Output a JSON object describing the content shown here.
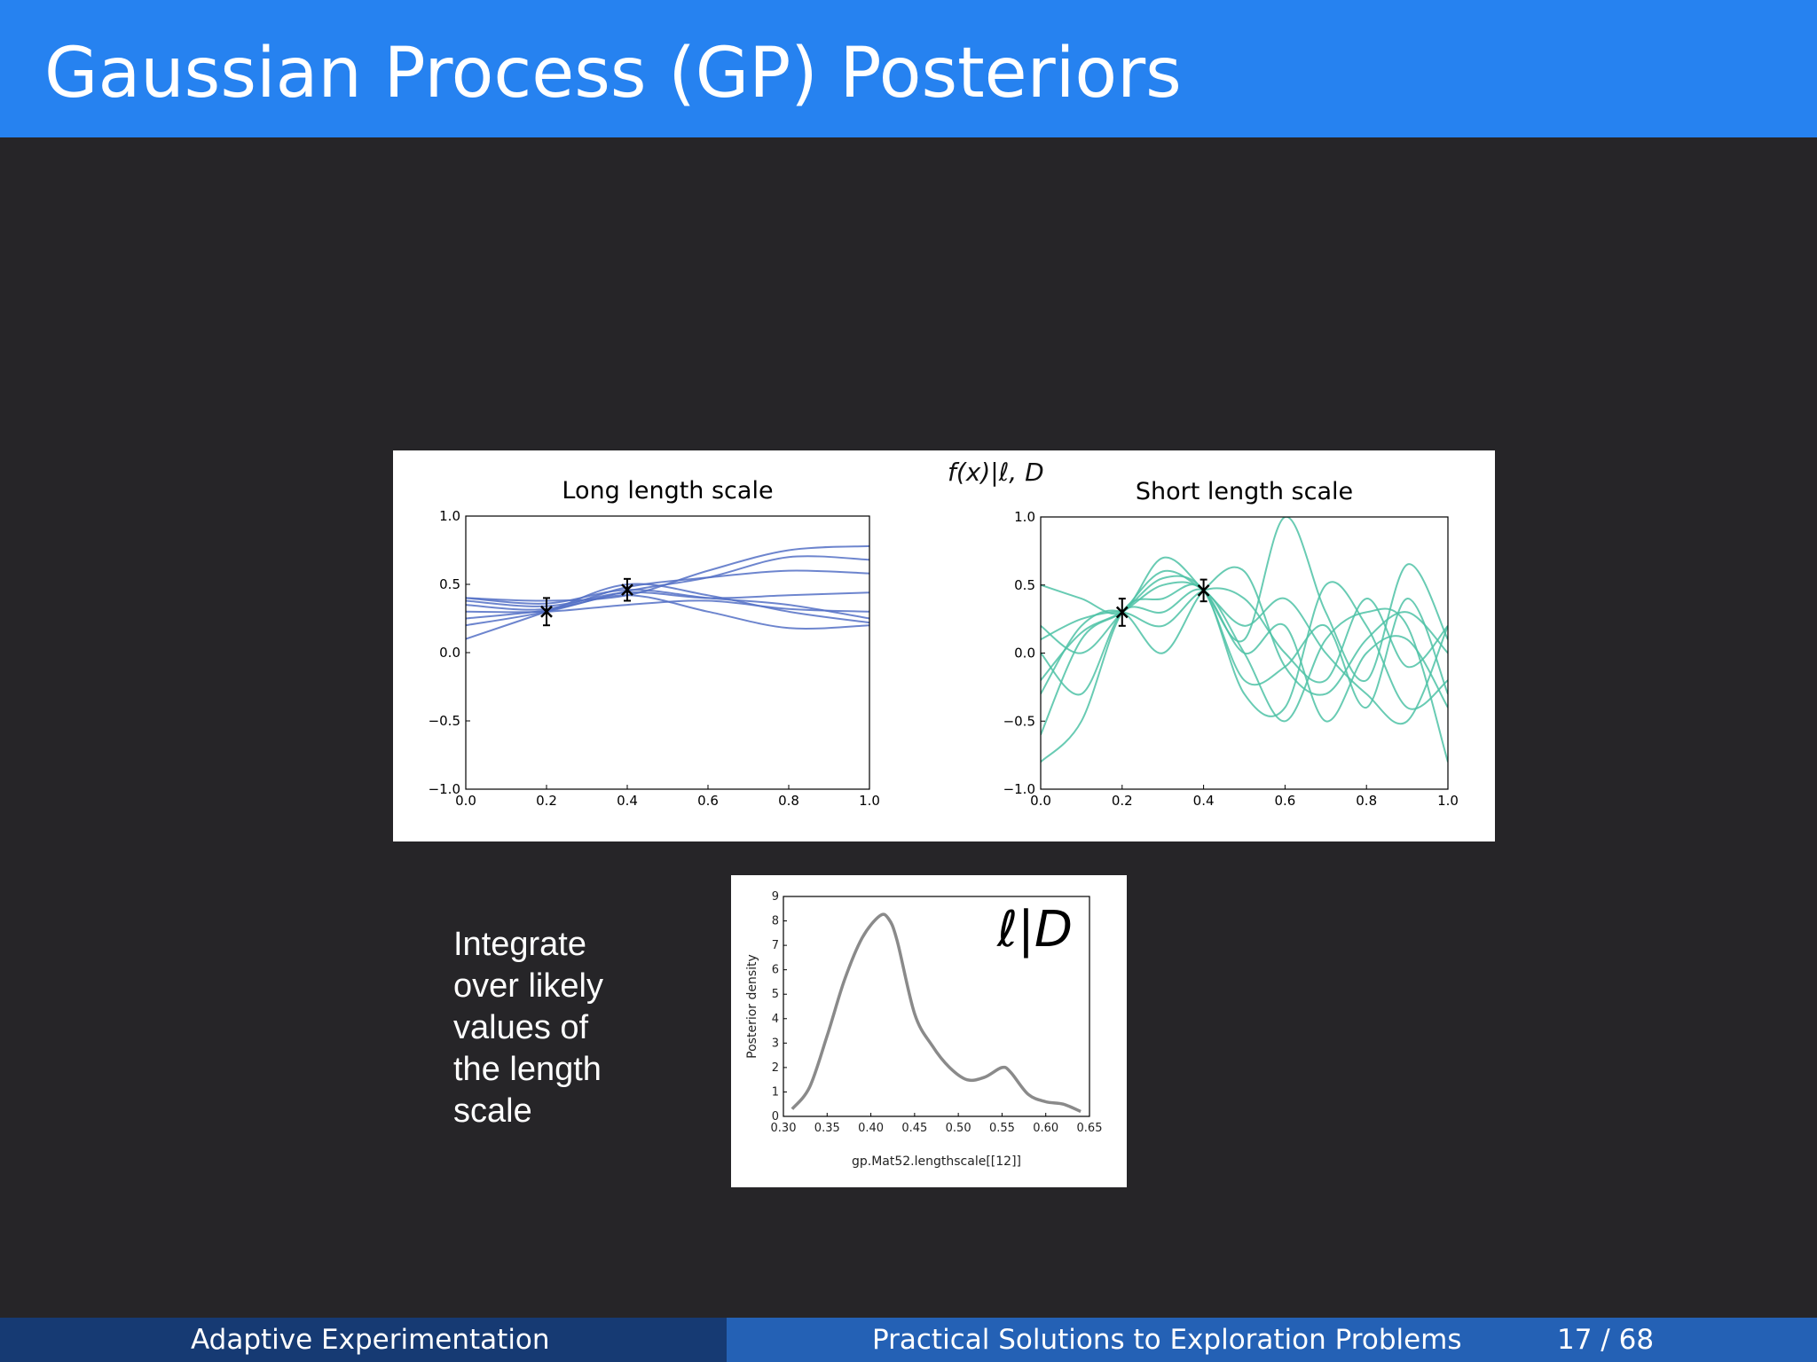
{
  "slide": {
    "title": "Gaussian Process (GP) Posteriors",
    "side_text": [
      "Integrate",
      "over likely",
      "values of",
      "the length",
      "scale"
    ],
    "formula_top": "f(x)|ℓ, D",
    "formula_bottom": "ℓ|D"
  },
  "footer": {
    "left": "Adaptive Experimentation",
    "subtitle": "Practical Solutions to Exploration Problems",
    "page": "17 / 68"
  },
  "colors": {
    "header": "#2682f0",
    "background": "#262528",
    "long": "#5470c6",
    "short": "#4ec2a6",
    "density": "#8a8a8a"
  },
  "chart_data": [
    {
      "type": "line",
      "title": "Long length scale",
      "xlabel": "",
      "ylabel": "",
      "xlim": [
        0.0,
        1.0
      ],
      "ylim": [
        -1.0,
        1.0
      ],
      "xticks": [
        "0.0",
        "0.2",
        "0.4",
        "0.6",
        "0.8",
        "1.0"
      ],
      "yticks": [
        "1.0",
        "0.5",
        "0.0",
        "−0.5",
        "−1.0"
      ],
      "observations": [
        {
          "x": 0.2,
          "y": 0.3,
          "err": 0.1
        },
        {
          "x": 0.4,
          "y": 0.46,
          "err": 0.08
        }
      ],
      "x": [
        0.0,
        0.2,
        0.4,
        0.6,
        0.8,
        1.0
      ],
      "series": [
        {
          "values": [
            0.4,
            0.38,
            0.42,
            0.6,
            0.75,
            0.78
          ]
        },
        {
          "values": [
            0.2,
            0.3,
            0.45,
            0.55,
            0.7,
            0.68
          ]
        },
        {
          "values": [
            0.35,
            0.32,
            0.48,
            0.55,
            0.6,
            0.58
          ]
        },
        {
          "values": [
            0.1,
            0.3,
            0.5,
            0.42,
            0.3,
            0.22
          ]
        },
        {
          "values": [
            0.4,
            0.36,
            0.46,
            0.4,
            0.35,
            0.25
          ]
        },
        {
          "values": [
            0.25,
            0.31,
            0.42,
            0.3,
            0.18,
            0.2
          ]
        },
        {
          "values": [
            0.38,
            0.34,
            0.44,
            0.4,
            0.42,
            0.44
          ]
        },
        {
          "values": [
            0.3,
            0.3,
            0.35,
            0.38,
            0.32,
            0.3
          ]
        }
      ]
    },
    {
      "type": "line",
      "title": "Short length scale",
      "xlabel": "",
      "ylabel": "",
      "xlim": [
        0.0,
        1.0
      ],
      "ylim": [
        -1.0,
        1.0
      ],
      "xticks": [
        "0.0",
        "0.2",
        "0.4",
        "0.6",
        "0.8",
        "1.0"
      ],
      "yticks": [
        "1.0",
        "0.5",
        "0.0",
        "−0.5",
        "−1.0"
      ],
      "observations": [
        {
          "x": 0.2,
          "y": 0.3,
          "err": 0.1
        },
        {
          "x": 0.4,
          "y": 0.46,
          "err": 0.08
        }
      ],
      "x": [
        0.0,
        0.1,
        0.2,
        0.3,
        0.4,
        0.5,
        0.6,
        0.7,
        0.8,
        0.9,
        1.0
      ],
      "series": [
        {
          "values": [
            0.5,
            0.4,
            0.3,
            0.7,
            0.46,
            0.1,
            1.0,
            0.3,
            -0.2,
            0.65,
            0.1
          ]
        },
        {
          "values": [
            -0.6,
            0.1,
            0.3,
            0.55,
            0.46,
            -0.2,
            -0.1,
            0.2,
            -0.4,
            0.4,
            -0.3
          ]
        },
        {
          "values": [
            0.0,
            -0.3,
            0.3,
            0.3,
            0.46,
            0.0,
            -0.5,
            0.1,
            0.3,
            0.2,
            -0.8
          ]
        },
        {
          "values": [
            -0.3,
            0.2,
            0.3,
            0.0,
            0.46,
            0.6,
            -0.1,
            -0.3,
            0.1,
            0.3,
            0.0
          ]
        },
        {
          "values": [
            0.2,
            0.0,
            0.3,
            0.6,
            0.46,
            0.2,
            0.4,
            0.0,
            -0.3,
            -0.5,
            0.2
          ]
        },
        {
          "values": [
            -0.8,
            -0.5,
            0.3,
            0.4,
            0.46,
            -0.3,
            -0.4,
            0.5,
            0.2,
            -0.4,
            -0.2
          ]
        },
        {
          "values": [
            0.1,
            0.25,
            0.3,
            0.2,
            0.46,
            0.4,
            0.0,
            -0.2,
            0.4,
            -0.1,
            0.2
          ]
        },
        {
          "values": [
            -0.2,
            0.15,
            0.3,
            0.5,
            0.46,
            0.0,
            0.2,
            -0.5,
            0.0,
            0.1,
            -0.4
          ]
        }
      ]
    },
    {
      "type": "line",
      "title": "",
      "xlabel": "gp.Mat52.lengthscale[[12]]",
      "ylabel": "Posterior density",
      "xlim": [
        0.3,
        0.65
      ],
      "ylim": [
        0,
        9
      ],
      "xticks": [
        "0.30",
        "0.35",
        "0.40",
        "0.45",
        "0.50",
        "0.55",
        "0.60",
        "0.65"
      ],
      "yticks": [
        "0",
        "1",
        "2",
        "3",
        "4",
        "5",
        "6",
        "7",
        "8",
        "9"
      ],
      "x": [
        0.31,
        0.33,
        0.35,
        0.37,
        0.39,
        0.41,
        0.42,
        0.43,
        0.45,
        0.47,
        0.49,
        0.51,
        0.53,
        0.55,
        0.56,
        0.58,
        0.6,
        0.62,
        0.64
      ],
      "series": [
        {
          "values": [
            0.3,
            1.2,
            3.3,
            5.6,
            7.3,
            8.2,
            8.1,
            7.2,
            4.2,
            2.9,
            2.0,
            1.5,
            1.6,
            2.0,
            1.8,
            0.9,
            0.6,
            0.5,
            0.2
          ]
        }
      ]
    }
  ]
}
